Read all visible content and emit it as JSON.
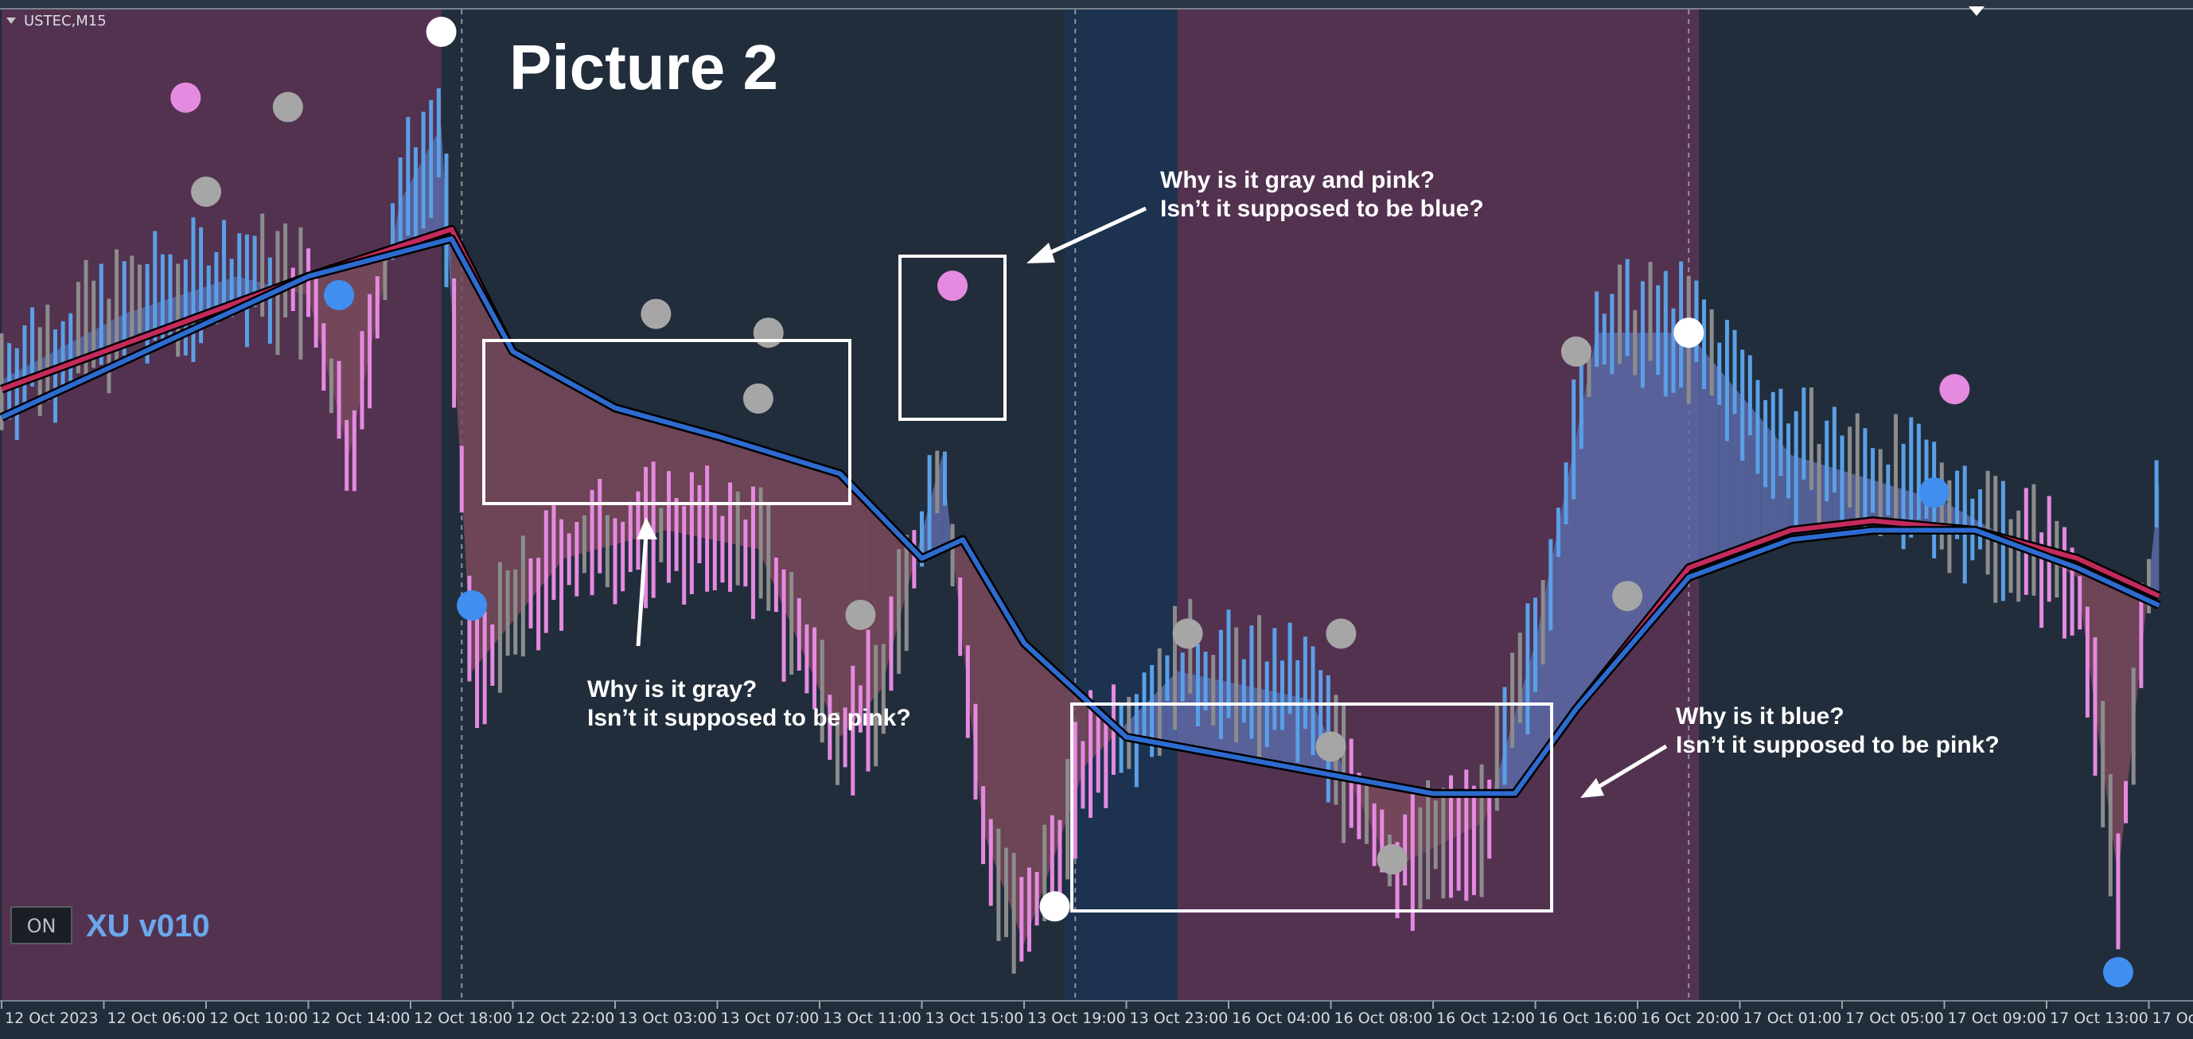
{
  "window": {
    "symbol_label": "USTEC,M15",
    "collapse_icon": "triangle-down-icon"
  },
  "overlay": {
    "title": "Picture 2",
    "status_button": "ON",
    "indicator_name": "XU v010"
  },
  "annotations": [
    {
      "id": "gray-pink-question",
      "lines": [
        "Why is it gray and pink?",
        "Isn’t it supposed to be blue?"
      ]
    },
    {
      "id": "gray-question",
      "lines": [
        "Why is it gray?",
        "Isn’t it supposed to be pink?"
      ]
    },
    {
      "id": "blue-question",
      "lines": [
        "Why is it blue?",
        "Isn’t it supposed to be pink?"
      ]
    }
  ],
  "colors": {
    "background": "#222d3b",
    "bear_session": "#533250",
    "bull_session": "#1c324f",
    "bull_bar": "#5aa0e6",
    "bear_bar": "#e48ae0",
    "neutral_bar": "#8c8c8c",
    "fast_line": "#c42a5c",
    "slow_line": "#2d6bd0",
    "bull_fill": "#5a6aa8",
    "bear_fill": "#7a4a5c",
    "annotation": "#ffffff"
  },
  "chart_data": {
    "type": "line",
    "title": "Picture 2",
    "symbol": "USTEC",
    "timeframe": "M15",
    "x_tick_labels": [
      "12 Oct 2023",
      "12 Oct 06:00",
      "12 Oct 10:00",
      "12 Oct 14:00",
      "12 Oct 18:00",
      "12 Oct 22:00",
      "13 Oct 03:00",
      "13 Oct 07:00",
      "13 Oct 11:00",
      "13 Oct 15:00",
      "13 Oct 19:00",
      "13 Oct 23:00",
      "16 Oct 04:00",
      "16 Oct 08:00",
      "16 Oct 12:00",
      "16 Oct 16:00",
      "16 Oct 20:00",
      "17 Oct 01:00",
      "17 Oct 05:00",
      "17 Oct 09:00",
      "17 Oct 13:00",
      "17 Oct"
    ],
    "day_separators_after_tick": [
      4,
      10,
      16
    ],
    "session_shading": [
      {
        "from_tick": 0,
        "to_tick": 4.3,
        "state": "bear"
      },
      {
        "from_tick": 4.3,
        "to_tick": 10.4,
        "state": "none"
      },
      {
        "from_tick": 10.4,
        "to_tick": 11.5,
        "state": "bull"
      },
      {
        "from_tick": 11.5,
        "to_tick": 16.6,
        "state": "bear"
      },
      {
        "from_tick": 16.6,
        "to_tick": 21.5,
        "state": "none"
      }
    ],
    "price_path": [
      [
        0,
        0.63
      ],
      [
        1.2,
        0.7
      ],
      [
        2.3,
        0.74
      ],
      [
        3.0,
        0.72
      ],
      [
        3.4,
        0.55
      ],
      [
        3.9,
        0.82
      ],
      [
        4.3,
        0.9
      ],
      [
        4.6,
        0.32
      ],
      [
        5.5,
        0.44
      ],
      [
        6.5,
        0.47
      ],
      [
        7.4,
        0.45
      ],
      [
        8.2,
        0.25
      ],
      [
        8.6,
        0.3
      ],
      [
        9.2,
        0.55
      ],
      [
        9.6,
        0.15
      ],
      [
        10.0,
        0.03
      ],
      [
        10.6,
        0.22
      ],
      [
        11.5,
        0.32
      ],
      [
        12.8,
        0.29
      ],
      [
        13.6,
        0.11
      ],
      [
        14.5,
        0.16
      ],
      [
        15.0,
        0.35
      ],
      [
        15.6,
        0.68
      ],
      [
        16.5,
        0.68
      ],
      [
        17.5,
        0.55
      ],
      [
        19.0,
        0.5
      ],
      [
        20.3,
        0.42
      ],
      [
        20.7,
        0.1
      ],
      [
        21.1,
        0.52
      ]
    ],
    "fast_ma": [
      [
        0,
        0.62
      ],
      [
        3.0,
        0.74
      ],
      [
        4.4,
        0.79
      ],
      [
        5.0,
        0.66
      ],
      [
        6.0,
        0.6
      ],
      [
        7.0,
        0.57
      ],
      [
        8.2,
        0.53
      ],
      [
        9.0,
        0.44
      ],
      [
        9.4,
        0.46
      ],
      [
        10.0,
        0.35
      ],
      [
        11.0,
        0.25
      ],
      [
        12.0,
        0.23
      ],
      [
        13.0,
        0.21
      ],
      [
        14.0,
        0.19
      ],
      [
        14.8,
        0.19
      ],
      [
        15.4,
        0.28
      ],
      [
        16.5,
        0.43
      ],
      [
        17.5,
        0.47
      ],
      [
        18.3,
        0.48
      ],
      [
        19.3,
        0.47
      ],
      [
        20.3,
        0.44
      ],
      [
        21.1,
        0.4
      ]
    ],
    "slow_ma": [
      [
        0,
        0.59
      ],
      [
        3.0,
        0.74
      ],
      [
        4.4,
        0.78
      ],
      [
        5.0,
        0.66
      ],
      [
        6.0,
        0.6
      ],
      [
        7.0,
        0.57
      ],
      [
        8.2,
        0.53
      ],
      [
        9.0,
        0.44
      ],
      [
        9.4,
        0.46
      ],
      [
        10.0,
        0.35
      ],
      [
        11.0,
        0.25
      ],
      [
        12.0,
        0.23
      ],
      [
        13.0,
        0.21
      ],
      [
        14.0,
        0.19
      ],
      [
        14.8,
        0.19
      ],
      [
        15.4,
        0.28
      ],
      [
        16.5,
        0.42
      ],
      [
        17.5,
        0.46
      ],
      [
        18.3,
        0.47
      ],
      [
        19.3,
        0.47
      ],
      [
        20.3,
        0.43
      ],
      [
        21.1,
        0.39
      ]
    ],
    "signal_dots": [
      {
        "x": 1.8,
        "y": 0.93,
        "color": "pink"
      },
      {
        "x": 2.0,
        "y": 0.83,
        "color": "gray"
      },
      {
        "x": 2.8,
        "y": 0.92,
        "color": "gray"
      },
      {
        "x": 3.3,
        "y": 0.72,
        "color": "blue"
      },
      {
        "x": 4.3,
        "y": 1.0,
        "color": "white"
      },
      {
        "x": 4.6,
        "y": 0.39,
        "color": "blue"
      },
      {
        "x": 6.4,
        "y": 0.7,
        "color": "gray"
      },
      {
        "x": 7.5,
        "y": 0.68,
        "color": "gray"
      },
      {
        "x": 7.4,
        "y": 0.61,
        "color": "gray"
      },
      {
        "x": 8.4,
        "y": 0.38,
        "color": "gray"
      },
      {
        "x": 9.3,
        "y": 0.73,
        "color": "pink"
      },
      {
        "x": 10.3,
        "y": 0.07,
        "color": "white"
      },
      {
        "x": 11.6,
        "y": 0.36,
        "color": "gray"
      },
      {
        "x": 13.1,
        "y": 0.36,
        "color": "gray"
      },
      {
        "x": 13.0,
        "y": 0.24,
        "color": "gray"
      },
      {
        "x": 13.6,
        "y": 0.12,
        "color": "gray"
      },
      {
        "x": 15.4,
        "y": 0.66,
        "color": "gray"
      },
      {
        "x": 15.9,
        "y": 0.4,
        "color": "gray"
      },
      {
        "x": 16.5,
        "y": 0.68,
        "color": "white"
      },
      {
        "x": 18.9,
        "y": 0.51,
        "color": "blue"
      },
      {
        "x": 19.1,
        "y": 0.62,
        "color": "pink"
      },
      {
        "x": 20.7,
        "y": 0.0,
        "color": "blue"
      }
    ],
    "y_range": [
      0,
      1
    ],
    "grid": false,
    "legend": "none"
  }
}
